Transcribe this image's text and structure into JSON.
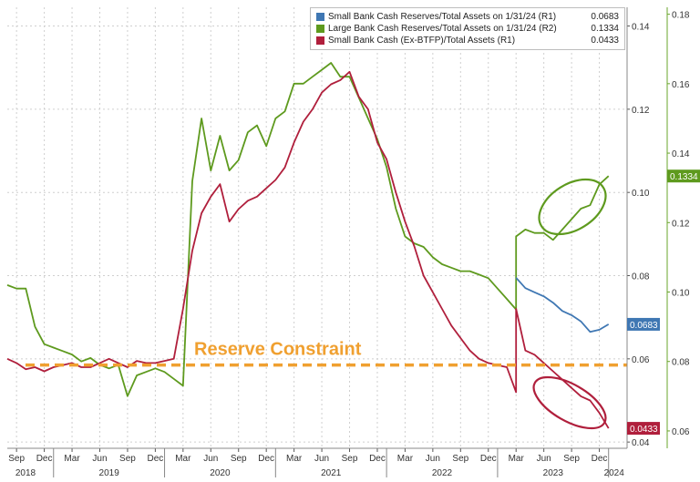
{
  "chart_data": {
    "type": "line",
    "x_axis": {
      "month_labels": [
        "Sep",
        "Dec",
        "Mar",
        "Jun",
        "Sep",
        "Dec",
        "Mar",
        "Jun",
        "Sep",
        "Dec",
        "Mar",
        "Jun",
        "Sep",
        "Dec",
        "Mar",
        "Jun",
        "Sep",
        "Dec",
        "Mar",
        "Jun",
        "Sep",
        "Dec"
      ],
      "year_labels": [
        "2018",
        "2019",
        "2020",
        "2021",
        "2022",
        "2023",
        "2024"
      ],
      "range": [
        "2018-08",
        "2024-03"
      ]
    },
    "left_axis": {
      "ticks": [
        "0.04",
        "0.06",
        "0.08",
        "0.10",
        "0.12",
        "0.14"
      ],
      "range": [
        0.0385,
        0.1445
      ]
    },
    "right_axis": {
      "ticks": [
        "0.06",
        "0.08",
        "0.10",
        "0.12",
        "0.14",
        "0.16",
        "0.18"
      ],
      "range": [
        0.055,
        0.182
      ]
    },
    "grid": true,
    "legend_position": "top-right",
    "legend": [
      {
        "label": "Small Bank Cash Reserves/Total Assets on 1/31/24 (R1)",
        "value": "0.0683",
        "color": "#3f77b3"
      },
      {
        "label": "Large Bank Cash Reserves/Total Assets on 1/31/24 (R2)",
        "value": "0.1334",
        "color": "#5e9a1e"
      },
      {
        "label": "Small Bank Cash (Ex-BTFP)/Total Assets (R1)",
        "value": "0.0433",
        "color": "#b01f3c"
      }
    ],
    "value_badges": [
      {
        "value": "0.1334",
        "color": "#5e9a1e"
      },
      {
        "value": "0.0683",
        "color": "#3f77b3"
      },
      {
        "value": "0.0433",
        "color": "#b01f3c"
      }
    ],
    "annotation": {
      "text": "Reserve Constraint",
      "color": "#f0a030",
      "level": 0.0585
    },
    "series": [
      {
        "name": "Large Bank Cash Reserves/Total Assets on 1/31/24 (R2)",
        "axis": "right",
        "color": "#5e9a1e",
        "x": [
          "2018-08",
          "2018-09",
          "2018-10",
          "2018-11",
          "2018-12",
          "2019-01",
          "2019-02",
          "2019-03",
          "2019-04",
          "2019-05",
          "2019-06",
          "2019-07",
          "2019-08",
          "2019-09",
          "2019-10",
          "2019-11",
          "2019-12",
          "2020-01",
          "2020-02",
          "2020-03",
          "2020-04",
          "2020-05",
          "2020-06",
          "2020-07",
          "2020-08",
          "2020-09",
          "2020-10",
          "2020-11",
          "2020-12",
          "2021-01",
          "2021-02",
          "2021-03",
          "2021-04",
          "2021-05",
          "2021-06",
          "2021-07",
          "2021-08",
          "2021-09",
          "2021-10",
          "2021-11",
          "2021-12",
          "2022-01",
          "2022-02",
          "2022-03",
          "2022-04",
          "2022-05",
          "2022-06",
          "2022-07",
          "2022-08",
          "2022-09",
          "2022-10",
          "2022-11",
          "2022-12",
          "2023-01",
          "2023-02",
          "2023-03",
          "2023-03",
          "2023-04",
          "2023-05",
          "2023-06",
          "2023-07",
          "2023-08",
          "2023-09",
          "2023-10",
          "2023-11",
          "2023-12",
          "2024-01"
        ],
        "y": [
          0.102,
          0.101,
          0.101,
          0.09,
          0.085,
          0.084,
          0.083,
          0.082,
          0.08,
          0.081,
          0.079,
          0.078,
          0.079,
          0.07,
          0.076,
          0.077,
          0.078,
          0.077,
          0.075,
          0.073,
          0.132,
          0.15,
          0.135,
          0.145,
          0.135,
          0.138,
          0.146,
          0.148,
          0.142,
          0.15,
          0.152,
          0.16,
          0.16,
          0.162,
          0.164,
          0.166,
          0.162,
          0.162,
          0.156,
          0.15,
          0.144,
          0.136,
          0.124,
          0.116,
          0.114,
          0.113,
          0.11,
          0.108,
          0.107,
          0.106,
          0.106,
          0.105,
          0.104,
          0.101,
          0.098,
          0.095,
          0.116,
          0.118,
          0.117,
          0.117,
          0.115,
          0.118,
          0.121,
          0.124,
          0.125,
          0.131,
          0.1334
        ]
      },
      {
        "name": "Small Bank Cash Reserves/Total Assets on 1/31/24 (R1)",
        "axis": "left",
        "color": "#3f77b3",
        "x": [
          "2023-03",
          "2023-04",
          "2023-05",
          "2023-06",
          "2023-07",
          "2023-08",
          "2023-09",
          "2023-10",
          "2023-11",
          "2023-12",
          "2024-01"
        ],
        "y": [
          0.0795,
          0.077,
          0.076,
          0.075,
          0.0735,
          0.0715,
          0.0705,
          0.069,
          0.0665,
          0.067,
          0.0683
        ]
      },
      {
        "name": "Small Bank Cash (Ex-BTFP)/Total Assets (R1)",
        "axis": "left",
        "color": "#b01f3c",
        "x": [
          "2018-08",
          "2018-09",
          "2018-10",
          "2018-11",
          "2018-12",
          "2019-01",
          "2019-02",
          "2019-03",
          "2019-04",
          "2019-05",
          "2019-06",
          "2019-07",
          "2019-08",
          "2019-09",
          "2019-10",
          "2019-11",
          "2019-12",
          "2020-01",
          "2020-02",
          "2020-03",
          "2020-04",
          "2020-05",
          "2020-06",
          "2020-07",
          "2020-08",
          "2020-09",
          "2020-10",
          "2020-11",
          "2020-12",
          "2021-01",
          "2021-02",
          "2021-03",
          "2021-04",
          "2021-05",
          "2021-06",
          "2021-07",
          "2021-08",
          "2021-09",
          "2021-10",
          "2021-11",
          "2021-12",
          "2022-01",
          "2022-02",
          "2022-03",
          "2022-04",
          "2022-05",
          "2022-06",
          "2022-07",
          "2022-08",
          "2022-09",
          "2022-10",
          "2022-11",
          "2022-12",
          "2023-01",
          "2023-02",
          "2023-03",
          "2023-03",
          "2023-04",
          "2023-05",
          "2023-06",
          "2023-07",
          "2023-08",
          "2023-09",
          "2023-10",
          "2023-11",
          "2023-12",
          "2024-01"
        ],
        "y": [
          0.06,
          0.059,
          0.0575,
          0.058,
          0.057,
          0.058,
          0.0585,
          0.059,
          0.058,
          0.058,
          0.059,
          0.06,
          0.059,
          0.058,
          0.0595,
          0.059,
          0.059,
          0.0595,
          0.06,
          0.072,
          0.086,
          0.095,
          0.099,
          0.102,
          0.093,
          0.096,
          0.098,
          0.099,
          0.101,
          0.103,
          0.106,
          0.112,
          0.117,
          0.12,
          0.124,
          0.126,
          0.127,
          0.129,
          0.123,
          0.12,
          0.112,
          0.108,
          0.1,
          0.093,
          0.087,
          0.08,
          0.076,
          0.072,
          0.068,
          0.065,
          0.062,
          0.06,
          0.059,
          0.0585,
          0.058,
          0.052,
          0.072,
          0.062,
          0.061,
          0.059,
          0.057,
          0.055,
          0.053,
          0.051,
          0.05,
          0.047,
          0.0433
        ]
      }
    ]
  }
}
